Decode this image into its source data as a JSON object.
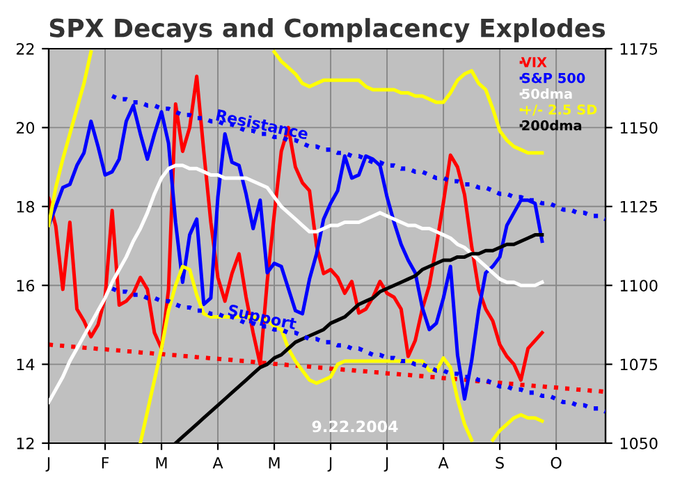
{
  "chart_data": {
    "type": "line",
    "title": "SPX Decays and Complacency Explodes",
    "categories": [
      "J",
      null,
      null,
      null,
      null,
      null,
      null,
      null,
      "F",
      null,
      null,
      null,
      null,
      null,
      null,
      null,
      "M",
      null,
      null,
      null,
      null,
      null,
      null,
      null,
      "A",
      null,
      null,
      null,
      null,
      null,
      null,
      null,
      "M",
      null,
      null,
      null,
      null,
      null,
      null,
      null,
      "J",
      null,
      null,
      null,
      null,
      null,
      null,
      null,
      "J",
      null,
      null,
      null,
      null,
      null,
      null,
      null,
      "A",
      null,
      null,
      null,
      null,
      null,
      null,
      null,
      "S",
      null,
      null,
      null,
      null,
      null,
      null,
      null,
      "O",
      null,
      null,
      null,
      null,
      null,
      null,
      null
    ],
    "ylim": [
      12,
      22
    ],
    "yticks": [
      12,
      14,
      16,
      18,
      20,
      22
    ],
    "y2lim": [
      1050,
      1175
    ],
    "y2ticks": [
      1050,
      1075,
      1100,
      1125,
      1150,
      1175
    ],
    "grid": true,
    "legend": "top right",
    "annotations": [
      "9.22.2004"
    ],
    "series": [
      {
        "name": "VIX",
        "color": "#ff0000",
        "axis": "y",
        "values": [
          18.2,
          17.5,
          15.9,
          17.6,
          15.4,
          15.1,
          14.7,
          15.0,
          15.7,
          17.9,
          15.5,
          15.6,
          15.8,
          16.2,
          15.9,
          14.8,
          14.4,
          15.9,
          20.6,
          19.4,
          20.0,
          21.3,
          19.4,
          17.6,
          16.2,
          15.6,
          16.3,
          16.8,
          15.7,
          14.8,
          14.0,
          16.1,
          17.8,
          19.4,
          20.0,
          19.0,
          18.6,
          18.4,
          17.0,
          16.3,
          16.4,
          16.2,
          15.8,
          16.1,
          15.3,
          15.4,
          15.7,
          16.1,
          15.8,
          15.7,
          15.4,
          14.2,
          14.6,
          15.4,
          16.0,
          17.0,
          18.1,
          19.3,
          19.0,
          18.3,
          17.0,
          15.9,
          15.4,
          15.1,
          14.5,
          14.2,
          14.0,
          13.6,
          14.4,
          14.6,
          14.8,
          null,
          null,
          null,
          null,
          null,
          null,
          null,
          null,
          null
        ]
      },
      {
        "name": "S&P 500",
        "color": "#0000ff",
        "axis": "y2",
        "values": [
          1119,
          1125,
          1131,
          1132,
          1138,
          1142,
          1152,
          1144,
          1135,
          1136,
          1140,
          1152,
          1157,
          1148,
          1140,
          1148,
          1155,
          1145,
          1120,
          1101,
          1116,
          1121,
          1094,
          1096,
          1128,
          1148,
          1139,
          1138,
          1129,
          1118,
          1127,
          1104,
          1107,
          1106,
          1099,
          1092,
          1091,
          1102,
          1110,
          1121,
          1126,
          1130,
          1141,
          1134,
          1135,
          1141,
          1140,
          1138,
          1128,
          1120,
          1113,
          1108,
          1104,
          1093,
          1086,
          1088,
          1096,
          1106,
          1078,
          1064,
          1076,
          1092,
          1104,
          1106,
          1109,
          1119,
          1123,
          1127,
          1127,
          1126,
          1114,
          null,
          null,
          null,
          null,
          null,
          null,
          null,
          null,
          null
        ]
      },
      {
        "name": "50dma",
        "color": "#ffffff",
        "axis": "y2",
        "values": [
          1063,
          1067,
          1071,
          1076,
          1080,
          1084,
          1088,
          1092,
          1096,
          1101,
          1105,
          1109,
          1114,
          1118,
          1123,
          1129,
          1134,
          1137,
          1138,
          1138,
          1137,
          1137,
          1136,
          1135,
          1135,
          1134,
          1134,
          1134,
          1134,
          1133,
          1132,
          1131,
          1128,
          1125,
          1123,
          1121,
          1119,
          1117,
          1117,
          1118,
          1119,
          1119,
          1120,
          1120,
          1120,
          1121,
          1122,
          1123,
          1122,
          1121,
          1120,
          1119,
          1119,
          1118,
          1118,
          1117,
          1116,
          1115,
          1113,
          1112,
          1110,
          1108,
          1106,
          1104,
          1102,
          1101,
          1101,
          1100,
          1100,
          1100,
          1101,
          null,
          null,
          null,
          null,
          null,
          null,
          null,
          null,
          null
        ]
      },
      {
        "name": "+/- 2.5 SD",
        "color": "#ffff00",
        "axis": "y2",
        "values": [
          1119,
          1131,
          1140,
          1148,
          1156,
          1164,
          1174,
          null,
          null,
          null,
          null,
          null,
          null,
          null,
          null,
          null,
          null,
          null,
          null,
          null,
          null,
          null,
          null,
          null,
          null,
          null,
          null,
          null,
          null,
          null,
          null,
          null,
          1174,
          1171,
          1169,
          1167,
          1164,
          1163,
          1164,
          1165,
          1165,
          1165,
          1165,
          1165,
          1165,
          1163,
          1162,
          1162,
          1162,
          1162,
          1161,
          1161,
          1160,
          1160,
          1159,
          1158,
          1158,
          1161,
          1165,
          1167,
          1168,
          1164,
          1162,
          1156,
          1149,
          1146,
          1144,
          1143,
          1142,
          1142,
          1142,
          null,
          null,
          null,
          null,
          null,
          null,
          null,
          null,
          null
        ]
      },
      {
        "color": "#ffff00",
        "axis": "y2",
        "values": [
          null,
          null,
          null,
          null,
          null,
          null,
          null,
          null,
          null,
          null,
          null,
          null,
          null,
          1050,
          1060,
          1070,
          1080,
          1092,
          1100,
          1106,
          1105,
          1097,
          1091,
          1090,
          1090,
          1090,
          1090,
          1090,
          1090,
          1090,
          1089,
          1089,
          1087,
          1086,
          1080,
          1076,
          1073,
          1070,
          1069,
          1070,
          1071,
          1075,
          1076,
          1076,
          1076,
          1076,
          1076,
          1076,
          1076,
          1076,
          1076,
          1076,
          1076,
          1076,
          1073,
          1073,
          1077,
          1074,
          1064,
          1056,
          1051,
          null,
          null,
          1051,
          1054,
          1056,
          1058,
          1059,
          1058,
          1058,
          1057,
          null,
          null,
          null,
          null,
          null,
          null,
          null,
          null,
          null
        ]
      },
      {
        "name": "200dma",
        "color": "#000000",
        "axis": "y2",
        "values": [
          null,
          null,
          null,
          null,
          null,
          null,
          null,
          null,
          null,
          null,
          null,
          null,
          null,
          null,
          null,
          null,
          null,
          null,
          1050,
          1052,
          1054,
          1056,
          1058,
          1060,
          1062,
          1064,
          1066,
          1068,
          1070,
          1072,
          1074,
          1075,
          1077,
          1078,
          1080,
          1082,
          1083,
          1084,
          1085,
          1086,
          1088,
          1089,
          1090,
          1092,
          1094,
          1095,
          1096,
          1098,
          1099,
          1100,
          1101,
          1102,
          1103,
          1105,
          1106,
          1107,
          1108,
          1108,
          1109,
          1109,
          1110,
          1110,
          1111,
          1111,
          1112,
          1113,
          1113,
          1114,
          1115,
          1116,
          1116,
          null,
          null,
          null,
          null,
          null,
          null,
          null,
          null,
          null
        ]
      },
      {
        "name": "Resistance",
        "color": "#0000ff",
        "axis": "y2",
        "line_style": "dotted",
        "values": [
          null,
          null,
          null,
          null,
          null,
          null,
          null,
          null,
          null,
          1160,
          1159,
          1159,
          1158,
          1158,
          1157,
          1157,
          1156,
          1156,
          1155,
          1154,
          1154,
          1153,
          1153,
          1152,
          1152,
          1151,
          1151,
          1150,
          1149,
          1149,
          1148,
          1148,
          1147,
          1147,
          1146,
          1146,
          1145,
          1144,
          1144,
          1143,
          1143,
          1142,
          1142,
          1141,
          1141,
          1140,
          1139,
          1139,
          1138,
          1138,
          1137,
          1137,
          1136,
          1136,
          1135,
          1134,
          1134,
          1133,
          1133,
          1132,
          1132,
          1131,
          1131,
          1130,
          1129,
          1129,
          1128,
          1128,
          1127,
          1127,
          1126,
          1126,
          1125,
          1124,
          1124,
          1123,
          1123,
          1122,
          1122,
          1121
        ]
      },
      {
        "name": "Support",
        "color": "#0000ff",
        "axis": "y2",
        "line_style": "dotted",
        "values": [
          null,
          null,
          null,
          null,
          null,
          null,
          null,
          null,
          null,
          1099,
          1098,
          1098,
          1097,
          1097,
          1096,
          1096,
          1095,
          1095,
          1094,
          1093,
          1093,
          1092,
          1092,
          1091,
          1091,
          1090,
          1090,
          1089,
          1088,
          1088,
          1087,
          1087,
          1086,
          1086,
          1085,
          1085,
          1084,
          1083,
          1083,
          1082,
          1082,
          1081,
          1081,
          1080,
          1080,
          1079,
          1078,
          1078,
          1077,
          1077,
          1076,
          1076,
          1075,
          1075,
          1074,
          1073,
          1073,
          1072,
          1072,
          1071,
          1071,
          1070,
          1070,
          1069,
          1068,
          1068,
          1067,
          1067,
          1066,
          1066,
          1065,
          1065,
          1064,
          1063,
          1063,
          1062,
          1062,
          1061,
          1061,
          1060
        ]
      },
      {
        "color": "#ff0000",
        "axis": "y",
        "line_style": "dotted",
        "values": [
          14.5,
          14.48,
          14.47,
          14.45,
          14.44,
          14.42,
          14.41,
          14.39,
          14.38,
          14.36,
          14.35,
          14.33,
          14.32,
          14.3,
          14.29,
          14.27,
          14.26,
          14.24,
          14.23,
          14.21,
          14.2,
          14.18,
          14.17,
          14.15,
          14.14,
          14.12,
          14.11,
          14.09,
          14.08,
          14.06,
          14.04,
          14.03,
          14.01,
          14.0,
          13.98,
          13.97,
          13.95,
          13.94,
          13.92,
          13.91,
          13.89,
          13.88,
          13.86,
          13.85,
          13.83,
          13.82,
          13.8,
          13.79,
          13.77,
          13.76,
          13.74,
          13.73,
          13.71,
          13.7,
          13.68,
          13.67,
          13.65,
          13.64,
          13.62,
          13.61,
          13.59,
          13.57,
          13.56,
          13.54,
          13.53,
          13.51,
          13.5,
          13.48,
          13.47,
          13.45,
          13.44,
          13.42,
          13.41,
          13.39,
          13.38,
          13.36,
          13.35,
          13.33,
          13.32,
          13.3
        ]
      }
    ]
  }
}
